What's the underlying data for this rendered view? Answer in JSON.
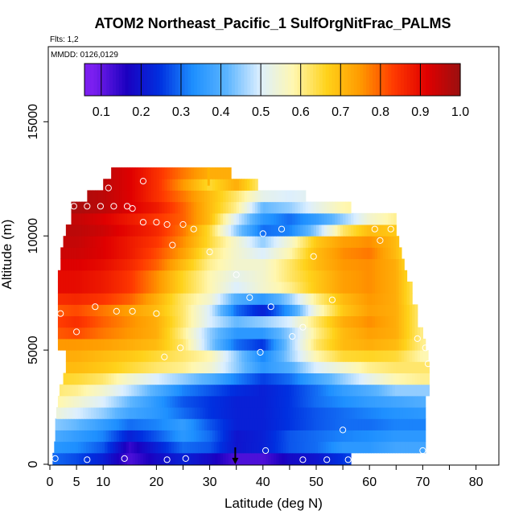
{
  "chart_data": {
    "type": "heatmap",
    "title": "ATOM2 Northeast_Pacific_1 SulfOrgNitFrac_PALMS",
    "flights_label": "Flts: 1,2",
    "date_label": "MMDD: 0126,0129",
    "xlabel": "Latitude (deg N)",
    "ylabel": "Altitude (m)",
    "xlim": [
      0,
      82
    ],
    "ylim": [
      0,
      17500
    ],
    "x_ticks": [
      0,
      5,
      10,
      20,
      30,
      40,
      50,
      60,
      70,
      80
    ],
    "y_ticks": [
      0,
      5000,
      10000,
      15000
    ],
    "colorbar": {
      "min": 0.08,
      "max": 1.0,
      "ticks": [
        0.1,
        0.2,
        0.3,
        0.4,
        0.5,
        0.6,
        0.7,
        0.8,
        0.9,
        1.0
      ],
      "tick_labels": [
        "0.1",
        "0.2",
        "0.3",
        "0.4",
        "0.5",
        "0.6",
        "0.7",
        "0.8",
        "0.9",
        "1.0"
      ],
      "colors": [
        "#7b1ff0",
        "#1b00c0",
        "#0030e0",
        "#1e90ff",
        "#5bb4ff",
        "#dcefff",
        "#fff7b0",
        "#ffd21a",
        "#ff9a00",
        "#ff3a00",
        "#e00000",
        "#9a1010"
      ]
    },
    "altitude_bins_m": [
      0,
      500,
      1000,
      1500,
      2000,
      2500,
      3000,
      3500,
      4000,
      4500,
      5000,
      5500,
      6000,
      6500,
      7000,
      7500,
      8000,
      8500,
      9000,
      9500,
      10000,
      10500,
      11000,
      11500,
      12000,
      12500
    ],
    "latitude_ranges": [
      [
        0.5,
        56.5
      ],
      [
        0.8,
        70.5
      ],
      [
        1.0,
        70.5
      ],
      [
        1.0,
        70.5
      ],
      [
        1.2,
        70.5
      ],
      [
        1.5,
        70.5
      ],
      [
        1.8,
        71.2
      ],
      [
        2.5,
        71.2
      ],
      [
        3.0,
        71.2
      ],
      [
        3.0,
        71.0
      ],
      [
        1.5,
        70.5
      ],
      [
        1.5,
        70.0
      ],
      [
        1.5,
        69.0
      ],
      [
        1.5,
        69.0
      ],
      [
        1.5,
        68.0
      ],
      [
        1.5,
        68.0
      ],
      [
        1.5,
        67.0
      ],
      [
        2.0,
        66.5
      ],
      [
        2.0,
        66.0
      ],
      [
        2.5,
        65.5
      ],
      [
        3.0,
        65.0
      ],
      [
        4.0,
        65.0
      ],
      [
        4.0,
        56.5
      ],
      [
        7.0,
        48.0
      ],
      [
        10.0,
        39.0
      ],
      [
        11.5,
        34.0
      ]
    ],
    "anchor_latitudes": [
      0,
      5,
      10,
      15,
      20,
      25,
      30,
      35,
      40,
      45,
      50,
      55,
      60,
      65,
      70
    ],
    "fraction_grid": [
      [
        0.3,
        0.27,
        0.22,
        0.12,
        0.18,
        0.22,
        0.18,
        0.12,
        0.12,
        0.18,
        0.2,
        0.25,
        0.3,
        0.35,
        0.35
      ],
      [
        0.35,
        0.33,
        0.28,
        0.14,
        0.22,
        0.3,
        0.28,
        0.2,
        0.22,
        0.28,
        0.3,
        0.35,
        0.35,
        0.38,
        0.38
      ],
      [
        0.4,
        0.36,
        0.32,
        0.22,
        0.28,
        0.35,
        0.3,
        0.2,
        0.22,
        0.28,
        0.3,
        0.32,
        0.33,
        0.35,
        0.35
      ],
      [
        0.45,
        0.42,
        0.36,
        0.3,
        0.32,
        0.36,
        0.28,
        0.22,
        0.22,
        0.25,
        0.28,
        0.3,
        0.3,
        0.32,
        0.32
      ],
      [
        0.55,
        0.5,
        0.45,
        0.38,
        0.35,
        0.3,
        0.25,
        0.22,
        0.22,
        0.25,
        0.28,
        0.3,
        0.32,
        0.34,
        0.35
      ],
      [
        0.6,
        0.55,
        0.5,
        0.42,
        0.35,
        0.28,
        0.25,
        0.22,
        0.22,
        0.25,
        0.3,
        0.33,
        0.36,
        0.38,
        0.4
      ],
      [
        0.62,
        0.6,
        0.55,
        0.48,
        0.4,
        0.32,
        0.28,
        0.24,
        0.22,
        0.25,
        0.3,
        0.36,
        0.4,
        0.45,
        0.45
      ],
      [
        0.66,
        0.65,
        0.62,
        0.55,
        0.5,
        0.45,
        0.4,
        0.32,
        0.26,
        0.3,
        0.38,
        0.45,
        0.52,
        0.58,
        0.6
      ],
      [
        0.7,
        0.7,
        0.68,
        0.65,
        0.62,
        0.6,
        0.55,
        0.45,
        0.35,
        0.4,
        0.5,
        0.55,
        0.6,
        0.62,
        0.62
      ],
      [
        0.72,
        0.72,
        0.7,
        0.68,
        0.65,
        0.62,
        0.58,
        0.45,
        0.32,
        0.45,
        0.58,
        0.65,
        0.66,
        0.65,
        0.58
      ],
      [
        0.75,
        0.75,
        0.74,
        0.72,
        0.7,
        0.62,
        0.45,
        0.3,
        0.25,
        0.45,
        0.62,
        0.7,
        0.72,
        0.7,
        0.6
      ],
      [
        0.8,
        0.82,
        0.78,
        0.75,
        0.72,
        0.6,
        0.45,
        0.35,
        0.35,
        0.45,
        0.6,
        0.7,
        0.74,
        0.72,
        0.6
      ],
      [
        0.82,
        0.85,
        0.8,
        0.76,
        0.72,
        0.62,
        0.5,
        0.42,
        0.45,
        0.5,
        0.62,
        0.72,
        0.76,
        0.72,
        0.6
      ],
      [
        0.8,
        0.82,
        0.78,
        0.74,
        0.7,
        0.62,
        0.5,
        0.3,
        0.22,
        0.35,
        0.55,
        0.68,
        0.74,
        0.72,
        0.6
      ],
      [
        0.85,
        0.86,
        0.84,
        0.8,
        0.72,
        0.62,
        0.55,
        0.4,
        0.35,
        0.45,
        0.6,
        0.7,
        0.75,
        0.72,
        0.58
      ],
      [
        0.9,
        0.9,
        0.88,
        0.84,
        0.76,
        0.66,
        0.58,
        0.5,
        0.55,
        0.6,
        0.68,
        0.74,
        0.76,
        0.72,
        0.58
      ],
      [
        0.9,
        0.9,
        0.88,
        0.84,
        0.76,
        0.66,
        0.58,
        0.52,
        0.55,
        0.62,
        0.68,
        0.74,
        0.76,
        0.72,
        0.58
      ],
      [
        0.92,
        0.92,
        0.9,
        0.86,
        0.8,
        0.7,
        0.6,
        0.55,
        0.55,
        0.62,
        0.7,
        0.75,
        0.76,
        0.72,
        0.55
      ],
      [
        0.94,
        0.94,
        0.92,
        0.88,
        0.82,
        0.74,
        0.62,
        0.55,
        0.5,
        0.58,
        0.7,
        0.76,
        0.78,
        0.7,
        0.55
      ],
      [
        0.95,
        0.95,
        0.92,
        0.88,
        0.84,
        0.76,
        0.65,
        0.55,
        0.45,
        0.55,
        0.68,
        0.74,
        0.76,
        0.7,
        0.55
      ],
      [
        0.96,
        0.96,
        0.94,
        0.9,
        0.86,
        0.78,
        0.65,
        0.45,
        0.3,
        0.32,
        0.45,
        0.62,
        0.7,
        0.68,
        0.55
      ],
      [
        0.95,
        0.95,
        0.92,
        0.88,
        0.84,
        0.8,
        0.7,
        0.5,
        0.35,
        0.3,
        0.36,
        0.45,
        0.55,
        0.6,
        0.55
      ],
      [
        0.98,
        0.98,
        0.96,
        0.92,
        0.88,
        0.8,
        0.7,
        0.6,
        0.42,
        0.45,
        0.52,
        0.58,
        0.6,
        0.6,
        0.55
      ],
      [
        0.98,
        0.98,
        0.96,
        0.92,
        0.85,
        0.78,
        0.7,
        0.62,
        0.52,
        0.5,
        0.52,
        0.55,
        0.55,
        0.55,
        0.55
      ],
      [
        0.98,
        0.98,
        0.96,
        0.92,
        0.85,
        0.75,
        0.65,
        0.72,
        0.6,
        0.55,
        0.55,
        0.55,
        0.55,
        0.55,
        0.55
      ],
      [
        0.98,
        0.98,
        0.96,
        0.92,
        0.85,
        0.78,
        0.72,
        0.72,
        0.65,
        0.6,
        0.6,
        0.6,
        0.6,
        0.6,
        0.6
      ]
    ],
    "observations": [
      {
        "lat": 1,
        "alt": 250
      },
      {
        "lat": 7,
        "alt": 200
      },
      {
        "lat": 14,
        "alt": 250
      },
      {
        "lat": 22,
        "alt": 200
      },
      {
        "lat": 25.5,
        "alt": 250
      },
      {
        "lat": 40.5,
        "alt": 600
      },
      {
        "lat": 47.5,
        "alt": 200
      },
      {
        "lat": 52,
        "alt": 200
      },
      {
        "lat": 56,
        "alt": 200
      },
      {
        "lat": 70,
        "alt": 600
      },
      {
        "lat": 55,
        "alt": 1500
      },
      {
        "lat": 71,
        "alt": 4400
      },
      {
        "lat": 21.5,
        "alt": 4700
      },
      {
        "lat": 24.5,
        "alt": 5100
      },
      {
        "lat": 39.5,
        "alt": 4900
      },
      {
        "lat": 5,
        "alt": 5800
      },
      {
        "lat": 45.5,
        "alt": 5600
      },
      {
        "lat": 47.5,
        "alt": 6000
      },
      {
        "lat": 70.5,
        "alt": 5100
      },
      {
        "lat": 69,
        "alt": 5500
      },
      {
        "lat": 2,
        "alt": 6600
      },
      {
        "lat": 8.5,
        "alt": 6900
      },
      {
        "lat": 12.5,
        "alt": 6700
      },
      {
        "lat": 15.5,
        "alt": 6700
      },
      {
        "lat": 20,
        "alt": 6600
      },
      {
        "lat": 41.5,
        "alt": 6900
      },
      {
        "lat": 37.5,
        "alt": 7300
      },
      {
        "lat": 53,
        "alt": 7200
      },
      {
        "lat": 35,
        "alt": 8300
      },
      {
        "lat": 30,
        "alt": 9300
      },
      {
        "lat": 49.5,
        "alt": 9100
      },
      {
        "lat": 23,
        "alt": 9600
      },
      {
        "lat": 62,
        "alt": 9800
      },
      {
        "lat": 17.5,
        "alt": 10600
      },
      {
        "lat": 20,
        "alt": 10600
      },
      {
        "lat": 22,
        "alt": 10500
      },
      {
        "lat": 25,
        "alt": 10500
      },
      {
        "lat": 27,
        "alt": 10300
      },
      {
        "lat": 40,
        "alt": 10100
      },
      {
        "lat": 43.5,
        "alt": 10300
      },
      {
        "lat": 61,
        "alt": 10300
      },
      {
        "lat": 64,
        "alt": 10300
      },
      {
        "lat": 3.5,
        "alt": 11300
      },
      {
        "lat": 4.5,
        "alt": 11300
      },
      {
        "lat": 7,
        "alt": 11300
      },
      {
        "lat": 9.5,
        "alt": 11300
      },
      {
        "lat": 12,
        "alt": 11300
      },
      {
        "lat": 14.5,
        "alt": 11300
      },
      {
        "lat": 15.5,
        "alt": 11200
      },
      {
        "lat": 11,
        "alt": 12100
      },
      {
        "lat": 17.5,
        "alt": 12400
      }
    ],
    "spike": {
      "lat": 29.8,
      "alt_min": 12200,
      "alt_max": 13000
    },
    "arrow_lat": 34.8
  }
}
